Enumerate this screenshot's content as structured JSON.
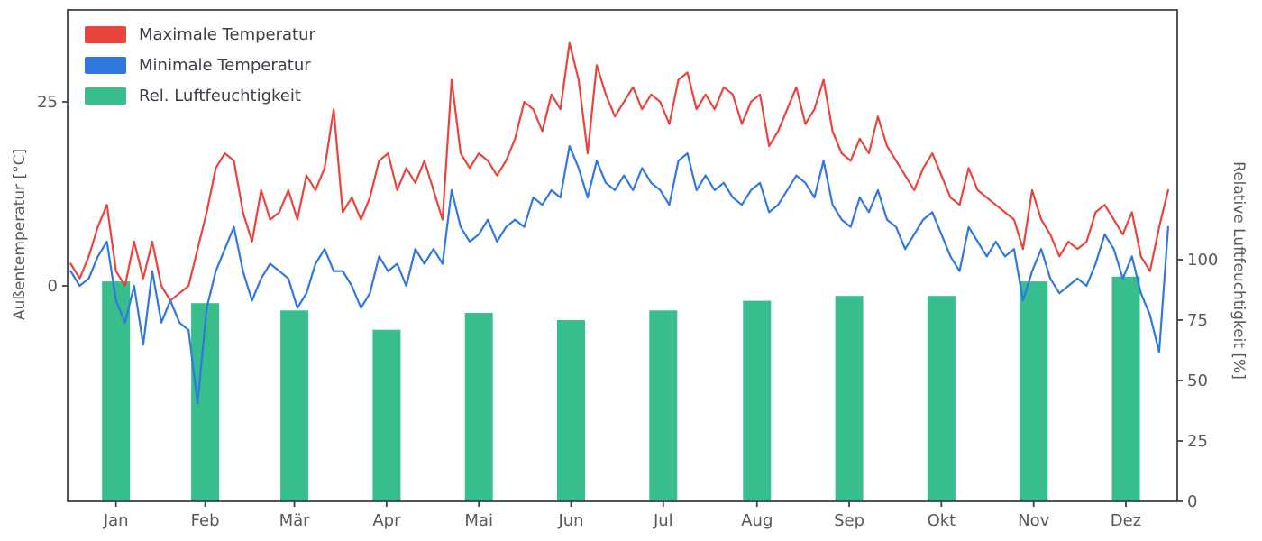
{
  "axes": {
    "left_label": "Außentemperatur [°C]",
    "right_label": "Relative Luftfeuchtigkeit [%]"
  },
  "legend": {
    "position": "upper left",
    "items": [
      {
        "key": "max-temp",
        "label": "Maximale Temperatur",
        "color": "#e8453f"
      },
      {
        "key": "min-temp",
        "label": "Minimale Temperatur",
        "color": "#3178de"
      },
      {
        "key": "humidity",
        "label": "Rel. Luftfeuchtigkeit",
        "color": "#38bd8d"
      }
    ]
  },
  "style": {
    "spine_color": "#3f4348",
    "tick_text_color": "#55595f",
    "background": "#ffffff"
  },
  "chart_data": {
    "type": "mixed",
    "title": "",
    "xlabel": "",
    "ylabel_left": "Außentemperatur [°C]",
    "ylabel_right": "Relative Luftfeuchtigkeit [%]",
    "x_unit": "day_of_year",
    "x_range": [
      1,
      364
    ],
    "x_tick_labels": [
      "Jan",
      "Feb",
      "Mär",
      "Apr",
      "Mai",
      "Jun",
      "Jul",
      "Aug",
      "Sep",
      "Okt",
      "Nov",
      "Dez"
    ],
    "yticks_left": [
      0,
      25
    ],
    "yticks_right": [
      0,
      25,
      50,
      75,
      100
    ],
    "ylim_left": [
      -29.3,
      37.5
    ],
    "ylim_right": [
      0,
      203
    ],
    "grid": false,
    "series": [
      {
        "key": "max-temp",
        "name": "Maximale Temperatur",
        "type": "line",
        "axis": "temperature",
        "color": "#e8453f",
        "x_start": 1,
        "x_step": 3,
        "values": [
          3,
          1,
          4,
          8,
          11,
          2,
          0,
          6,
          1,
          6,
          0,
          -2,
          -1,
          0,
          5,
          10,
          16,
          18,
          17,
          10,
          6,
          13,
          9,
          10,
          13,
          9,
          15,
          13,
          16,
          24,
          10,
          12,
          9,
          12,
          17,
          18,
          13,
          16,
          14,
          17,
          13,
          9,
          28,
          18,
          16,
          18,
          17,
          15,
          17,
          20,
          25,
          24,
          21,
          26,
          24,
          33,
          28,
          18,
          30,
          26,
          23,
          25,
          27,
          24,
          26,
          25,
          22,
          28,
          29,
          24,
          26,
          24,
          27,
          26,
          22,
          25,
          26,
          19,
          21,
          24,
          27,
          22,
          24,
          28,
          21,
          18,
          17,
          20,
          18,
          23,
          19,
          17,
          15,
          13,
          16,
          18,
          15,
          12,
          11,
          16,
          13,
          12,
          11,
          10,
          9,
          5,
          13,
          9,
          7,
          4,
          6,
          5,
          6,
          10,
          11,
          9,
          7,
          10,
          4,
          2,
          8,
          13
        ]
      },
      {
        "key": "min-temp",
        "name": "Minimale Temperatur",
        "type": "line",
        "axis": "temperature",
        "color": "#3178de",
        "x_start": 1,
        "x_step": 3,
        "values": [
          2,
          0,
          1,
          4,
          6,
          -2,
          -5,
          0,
          -8,
          2,
          -5,
          -2,
          -5,
          -6,
          -16,
          -3,
          2,
          5,
          8,
          2,
          -2,
          1,
          3,
          2,
          1,
          -3,
          -1,
          3,
          5,
          2,
          2,
          0,
          -3,
          -1,
          4,
          2,
          3,
          0,
          5,
          3,
          5,
          3,
          13,
          8,
          6,
          7,
          9,
          6,
          8,
          9,
          8,
          12,
          11,
          13,
          12,
          19,
          16,
          12,
          17,
          14,
          13,
          15,
          13,
          16,
          14,
          13,
          11,
          17,
          18,
          13,
          15,
          13,
          14,
          12,
          11,
          13,
          14,
          10,
          11,
          13,
          15,
          14,
          12,
          17,
          11,
          9,
          8,
          12,
          10,
          13,
          9,
          8,
          5,
          7,
          9,
          10,
          7,
          4,
          2,
          8,
          6,
          4,
          6,
          4,
          5,
          -2,
          2,
          5,
          1,
          -1,
          0,
          1,
          0,
          3,
          7,
          5,
          1,
          4,
          -1,
          -4,
          -9,
          8
        ]
      },
      {
        "key": "humidity",
        "name": "Rel. Luftfeuchtigkeit",
        "type": "bar",
        "axis": "humidity",
        "color": "#38bd8d",
        "categories": [
          "Jan",
          "Feb",
          "Mär",
          "Apr",
          "Mai",
          "Jun",
          "Jul",
          "Aug",
          "Sep",
          "Okt",
          "Nov",
          "Dez"
        ],
        "values": [
          91,
          82,
          79,
          71,
          78,
          75,
          79,
          83,
          85,
          85,
          91,
          93
        ]
      }
    ]
  }
}
